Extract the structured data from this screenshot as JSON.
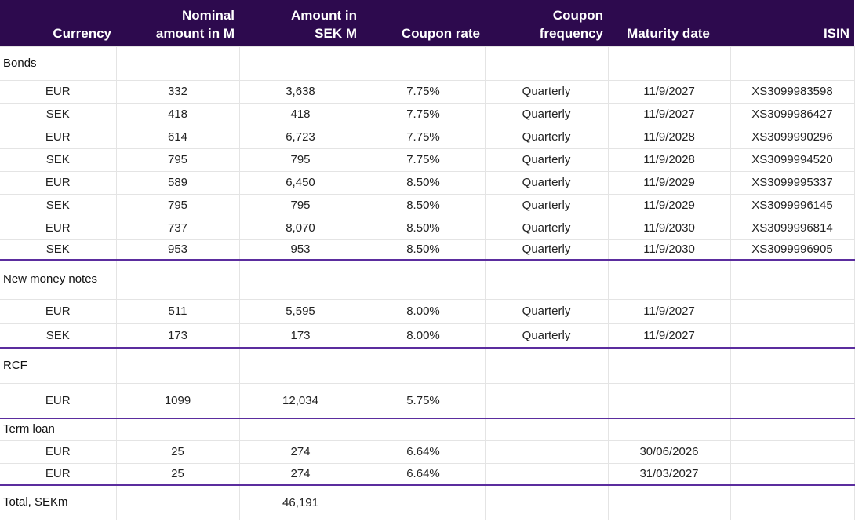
{
  "header": {
    "currency": "Currency",
    "nominal": "Nominal amount in M",
    "sek": "Amount in SEK M",
    "coupon_rate": "Coupon rate",
    "coupon_frequency": "Coupon frequency",
    "maturity": "Maturity date",
    "isin": "ISIN"
  },
  "colors": {
    "header_bg": "#2d0a4e",
    "divider": "#5b2d9e"
  },
  "sections": [
    {
      "title": "Bonds",
      "rows": [
        [
          "EUR",
          "332",
          "3,638",
          "7.75%",
          "Quarterly",
          "11/9/2027",
          "XS3099983598"
        ],
        [
          "SEK",
          "418",
          "418",
          "7.75%",
          "Quarterly",
          "11/9/2027",
          "XS3099986427"
        ],
        [
          "EUR",
          "614",
          "6,723",
          "7.75%",
          "Quarterly",
          "11/9/2028",
          "XS3099990296"
        ],
        [
          "SEK",
          "795",
          "795",
          "7.75%",
          "Quarterly",
          "11/9/2028",
          "XS3099994520"
        ],
        [
          "EUR",
          "589",
          "6,450",
          "8.50%",
          "Quarterly",
          "11/9/2029",
          "XS3099995337"
        ],
        [
          "SEK",
          "795",
          "795",
          "8.50%",
          "Quarterly",
          "11/9/2029",
          "XS3099996145"
        ],
        [
          "EUR",
          "737",
          "8,070",
          "8.50%",
          "Quarterly",
          "11/9/2030",
          "XS3099996814"
        ],
        [
          "SEK",
          "953",
          "953",
          "8.50%",
          "Quarterly",
          "11/9/2030",
          "XS3099996905"
        ]
      ]
    },
    {
      "title": "New money notes",
      "rows": [
        [
          "EUR",
          "511",
          "5,595",
          "8.00%",
          "Quarterly",
          "11/9/2027",
          ""
        ],
        [
          "SEK",
          "173",
          "173",
          "8.00%",
          "Quarterly",
          "11/9/2027",
          ""
        ]
      ]
    },
    {
      "title": "RCF",
      "rows": [
        [
          "EUR",
          "1099",
          "12,034",
          "5.75%",
          "",
          "",
          ""
        ]
      ]
    },
    {
      "title": "Term loan",
      "rows": [
        [
          "EUR",
          "25",
          "274",
          "6.64%",
          "",
          "30/06/2026",
          ""
        ],
        [
          "EUR",
          "25",
          "274",
          "6.64%",
          "",
          "31/03/2027",
          ""
        ]
      ]
    }
  ],
  "total": {
    "label": "Total, SEKm",
    "sek": "46,191"
  }
}
